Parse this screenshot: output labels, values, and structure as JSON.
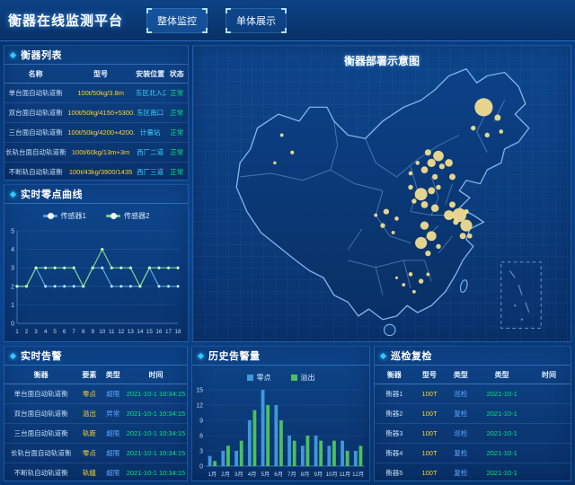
{
  "header": {
    "app_title": "衡器在线监测平台",
    "tabs": [
      {
        "label": "整体监控",
        "active": true
      },
      {
        "label": "单体展示",
        "active": false
      }
    ]
  },
  "colors": {
    "accent_cyan": "#35c8ff",
    "value_yellow": "#ffd32a",
    "status_green": "#00e67a",
    "type_blue": "#5fa8ff",
    "bubble_yellow": "#f0dc8e"
  },
  "device_list": {
    "title": "衡器列表",
    "columns": [
      "名称",
      "型号",
      "安装位置",
      "状态"
    ],
    "rows": [
      {
        "name": "单台面自动轨道衡",
        "model": "100t/50kg/3.8m",
        "location": "东区北入口",
        "status": "正常"
      },
      {
        "name": "双台面自动轨道衡",
        "model": "100t/50kg/4150+5300...",
        "location": "东区南口",
        "status": "正常"
      },
      {
        "name": "三台面自动轨道衡",
        "model": "100t/50kg/4200+4200...",
        "location": "计量站",
        "status": "正常"
      },
      {
        "name": "长轨台面自动轨道衡",
        "model": "100t/60kg/13m+3m",
        "location": "西厂二道",
        "status": "正常"
      },
      {
        "name": "不断轨自动轨道衡",
        "model": "100t/43kg/3900/1435",
        "location": "西厂三道",
        "status": "正常"
      }
    ]
  },
  "zero_curve": {
    "title": "实时零点曲线",
    "chart": {
      "type": "line",
      "x": [
        "1",
        "2",
        "3",
        "4",
        "5",
        "6",
        "7",
        "8",
        "9",
        "10",
        "11",
        "12",
        "13",
        "14",
        "15",
        "16",
        "17",
        "18"
      ],
      "ylim": [
        0,
        5
      ],
      "yticks": [
        0,
        1,
        2,
        3,
        4,
        5
      ],
      "series": [
        {
          "name": "传感器1",
          "color": "#55a7e0",
          "values": [
            2,
            2,
            3,
            2,
            2,
            2,
            2,
            2,
            3,
            3,
            2,
            2,
            2,
            2,
            3,
            2,
            2,
            2
          ]
        },
        {
          "name": "传感器2",
          "color": "#7bd389",
          "values": [
            2,
            2,
            3,
            3,
            3,
            3,
            3,
            2,
            3,
            4,
            3,
            3,
            3,
            2,
            3,
            3,
            3,
            3
          ]
        }
      ]
    }
  },
  "map_panel": {
    "title": "衡器部署示意图",
    "bubbles": [
      {
        "x": 79,
        "y": 13,
        "r": 2.6
      },
      {
        "x": 83,
        "y": 16,
        "r": 0.9
      },
      {
        "x": 76,
        "y": 19,
        "r": 0.7
      },
      {
        "x": 80,
        "y": 21,
        "r": 0.7
      },
      {
        "x": 84,
        "y": 20,
        "r": 0.6
      },
      {
        "x": 63,
        "y": 26,
        "r": 0.9
      },
      {
        "x": 66,
        "y": 27,
        "r": 1.5
      },
      {
        "x": 64,
        "y": 29,
        "r": 1.2
      },
      {
        "x": 67,
        "y": 30,
        "r": 0.8
      },
      {
        "x": 69,
        "y": 29,
        "r": 1.1
      },
      {
        "x": 62,
        "y": 31,
        "r": 1.0
      },
      {
        "x": 65,
        "y": 33,
        "r": 0.8
      },
      {
        "x": 70,
        "y": 33,
        "r": 0.9
      },
      {
        "x": 60,
        "y": 29,
        "r": 0.6
      },
      {
        "x": 58,
        "y": 32,
        "r": 0.6
      },
      {
        "x": 58,
        "y": 36,
        "r": 0.7
      },
      {
        "x": 61,
        "y": 38,
        "r": 1.8
      },
      {
        "x": 64,
        "y": 37,
        "r": 1.0
      },
      {
        "x": 66,
        "y": 36,
        "r": 0.7
      },
      {
        "x": 62,
        "y": 41,
        "r": 1.0
      },
      {
        "x": 65,
        "y": 42,
        "r": 1.1
      },
      {
        "x": 59,
        "y": 40,
        "r": 0.7
      },
      {
        "x": 70,
        "y": 41,
        "r": 0.9
      },
      {
        "x": 72,
        "y": 44,
        "r": 2.0
      },
      {
        "x": 74,
        "y": 43,
        "r": 0.7
      },
      {
        "x": 71,
        "y": 46,
        "r": 0.8
      },
      {
        "x": 74,
        "y": 47,
        "r": 1.7
      },
      {
        "x": 73,
        "y": 50,
        "r": 0.9
      },
      {
        "x": 75,
        "y": 50,
        "r": 0.7
      },
      {
        "x": 69,
        "y": 44,
        "r": 1.4
      },
      {
        "x": 62,
        "y": 47,
        "r": 1.2
      },
      {
        "x": 64,
        "y": 50,
        "r": 1.4
      },
      {
        "x": 61,
        "y": 52,
        "r": 1.7
      },
      {
        "x": 63,
        "y": 55,
        "r": 0.8
      },
      {
        "x": 66,
        "y": 53,
        "r": 0.7
      },
      {
        "x": 51,
        "y": 43,
        "r": 0.8
      },
      {
        "x": 54,
        "y": 45,
        "r": 0.6
      },
      {
        "x": 50,
        "y": 47,
        "r": 0.7
      },
      {
        "x": 53,
        "y": 49,
        "r": 0.5
      },
      {
        "x": 48,
        "y": 44,
        "r": 0.5
      },
      {
        "x": 58,
        "y": 61,
        "r": 0.6
      },
      {
        "x": 61,
        "y": 63,
        "r": 0.7
      },
      {
        "x": 63,
        "y": 61,
        "r": 0.5
      },
      {
        "x": 56,
        "y": 64,
        "r": 0.5
      },
      {
        "x": 59,
        "y": 66,
        "r": 0.5
      },
      {
        "x": 54,
        "y": 62,
        "r": 0.4
      },
      {
        "x": 21,
        "y": 21,
        "r": 0.5
      },
      {
        "x": 24,
        "y": 26,
        "r": 0.55
      },
      {
        "x": 19,
        "y": 29,
        "r": 0.45
      }
    ]
  },
  "alarms": {
    "title": "实时告警",
    "columns": [
      "衡器",
      "要素",
      "类型",
      "时间"
    ],
    "rows": [
      {
        "device": "单台面自动轨道衡",
        "factor": "零点",
        "type": "超限",
        "time": "2021-10-1 10:34:15"
      },
      {
        "device": "双台面自动轨道衡",
        "factor": "溢出",
        "type": "异常",
        "time": "2021-10-1 10:34:15"
      },
      {
        "device": "三台面自动轨道衡",
        "factor": "轨距",
        "type": "超限",
        "time": "2021-10-1 10:34:15"
      },
      {
        "device": "长轨台面自动轨道衡",
        "factor": "零点",
        "type": "超限",
        "time": "2021-10-1 10:34:15"
      },
      {
        "device": "不断轨自动轨道衡",
        "factor": "轨缝",
        "type": "超限",
        "time": "2021-10-1 10:34:15"
      }
    ]
  },
  "history": {
    "title": "历史告警量",
    "chart": {
      "type": "bar",
      "categories": [
        "1月",
        "2月",
        "3月",
        "4月",
        "5月",
        "6月",
        "7月",
        "8月",
        "9月",
        "10月",
        "11月",
        "12月"
      ],
      "ylim": [
        0,
        15
      ],
      "yticks": [
        0,
        3,
        6,
        9,
        12,
        15
      ],
      "series": [
        {
          "name": "零点",
          "color": "#3f97dc",
          "values": [
            2,
            3,
            3,
            9,
            15,
            12,
            6,
            4,
            6,
            4,
            5,
            3
          ]
        },
        {
          "name": "溢出",
          "color": "#4cbf5e",
          "values": [
            1,
            4,
            5,
            11,
            12,
            9,
            5,
            6,
            5,
            5,
            3,
            4
          ]
        }
      ]
    }
  },
  "inspection": {
    "title": "巡检复检",
    "columns": [
      "衡器",
      "型号",
      "类型",
      "类型",
      "时间"
    ],
    "rows": [
      {
        "device": "衡器1",
        "model": "100T",
        "type": "巡检",
        "date": "2021-10-1",
        "time": ""
      },
      {
        "device": "衡器2",
        "model": "100T",
        "type": "复检",
        "date": "2021-10-1",
        "time": ""
      },
      {
        "device": "衡器3",
        "model": "100T",
        "type": "巡检",
        "date": "2021-10-1",
        "time": ""
      },
      {
        "device": "衡器4",
        "model": "100T",
        "type": "复检",
        "date": "2021-10-1",
        "time": ""
      },
      {
        "device": "衡器5",
        "model": "100T",
        "type": "复检",
        "date": "2021-10-1",
        "time": ""
      }
    ]
  }
}
